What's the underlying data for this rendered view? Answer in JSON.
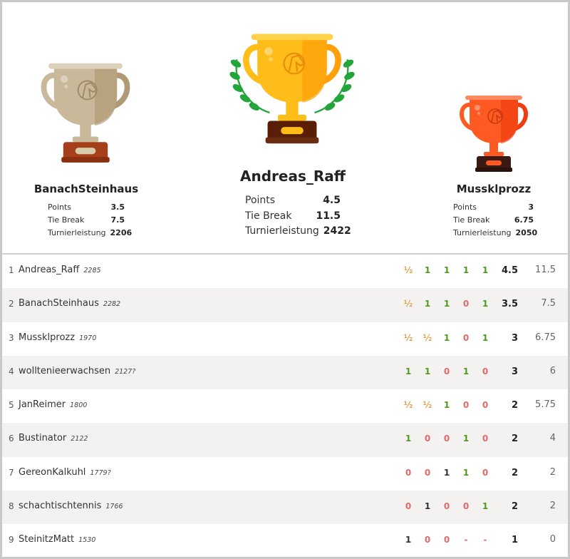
{
  "podium": [
    {
      "place": 2,
      "name": "BanachSteinhaus",
      "trophy": "silver-trophy-icon",
      "stats": [
        {
          "label": "Points",
          "value": "3.5"
        },
        {
          "label": "Tie Break",
          "value": "7.5"
        },
        {
          "label": "Turnierleistung",
          "value": "2206"
        }
      ]
    },
    {
      "place": 1,
      "name": "Andreas_Raff",
      "trophy": "gold-trophy-icon",
      "stats": [
        {
          "label": "Points",
          "value": "4.5"
        },
        {
          "label": "Tie Break",
          "value": "11.5"
        },
        {
          "label": "Turnierleistung",
          "value": "2422"
        }
      ]
    },
    {
      "place": 3,
      "name": "Mussklprozz",
      "trophy": "bronze-trophy-icon",
      "stats": [
        {
          "label": "Points",
          "value": "3"
        },
        {
          "label": "Tie Break",
          "value": "6.75"
        },
        {
          "label": "Turnierleistung",
          "value": "2050"
        }
      ]
    }
  ],
  "colors": {
    "win": "#4f9a1c",
    "loss": "#e06a6a",
    "draw": "#e3a24a",
    "bye": "#333333"
  },
  "standings": [
    {
      "rank": "1",
      "name": "Andreas_Raff",
      "rating": "2285",
      "results": [
        [
          "½",
          "d"
        ],
        [
          "1",
          "w"
        ],
        [
          "1",
          "w"
        ],
        [
          "1",
          "w"
        ],
        [
          "1",
          "w"
        ]
      ],
      "score": "4.5",
      "tiebreak": "11.5"
    },
    {
      "rank": "2",
      "name": "BanachSteinhaus",
      "rating": "2282",
      "results": [
        [
          "½",
          "d"
        ],
        [
          "1",
          "w"
        ],
        [
          "1",
          "w"
        ],
        [
          "0",
          "l"
        ],
        [
          "1",
          "w"
        ]
      ],
      "score": "3.5",
      "tiebreak": "7.5"
    },
    {
      "rank": "3",
      "name": "Mussklprozz",
      "rating": "1970",
      "results": [
        [
          "½",
          "d"
        ],
        [
          "½",
          "d"
        ],
        [
          "1",
          "w"
        ],
        [
          "0",
          "l"
        ],
        [
          "1",
          "w"
        ]
      ],
      "score": "3",
      "tiebreak": "6.75"
    },
    {
      "rank": "4",
      "name": "wolltenieerwachsen",
      "rating": "2127?",
      "results": [
        [
          "1",
          "w"
        ],
        [
          "1",
          "w"
        ],
        [
          "0",
          "l"
        ],
        [
          "1",
          "w"
        ],
        [
          "0",
          "l"
        ]
      ],
      "score": "3",
      "tiebreak": "6"
    },
    {
      "rank": "5",
      "name": "JanReimer",
      "rating": "1800",
      "results": [
        [
          "½",
          "d"
        ],
        [
          "½",
          "d"
        ],
        [
          "1",
          "w"
        ],
        [
          "0",
          "l"
        ],
        [
          "0",
          "l"
        ]
      ],
      "score": "2",
      "tiebreak": "5.75"
    },
    {
      "rank": "6",
      "name": "Bustinator",
      "rating": "2122",
      "results": [
        [
          "1",
          "w"
        ],
        [
          "0",
          "l"
        ],
        [
          "0",
          "l"
        ],
        [
          "1",
          "w"
        ],
        [
          "0",
          "l"
        ]
      ],
      "score": "2",
      "tiebreak": "4"
    },
    {
      "rank": "7",
      "name": "GereonKalkuhl",
      "rating": "1779?",
      "results": [
        [
          "0",
          "l"
        ],
        [
          "0",
          "l"
        ],
        [
          "1",
          "n"
        ],
        [
          "1",
          "w"
        ],
        [
          "0",
          "l"
        ]
      ],
      "score": "2",
      "tiebreak": "2"
    },
    {
      "rank": "8",
      "name": "schachtischtennis",
      "rating": "1766",
      "results": [
        [
          "0",
          "l"
        ],
        [
          "1",
          "n"
        ],
        [
          "0",
          "l"
        ],
        [
          "0",
          "l"
        ],
        [
          "1",
          "w"
        ]
      ],
      "score": "2",
      "tiebreak": "2"
    },
    {
      "rank": "9",
      "name": "SteinitzMatt",
      "rating": "1530",
      "results": [
        [
          "1",
          "n"
        ],
        [
          "0",
          "l"
        ],
        [
          "0",
          "l"
        ],
        [
          "-",
          "l"
        ],
        [
          "-",
          "l"
        ]
      ],
      "score": "1",
      "tiebreak": "0"
    }
  ]
}
